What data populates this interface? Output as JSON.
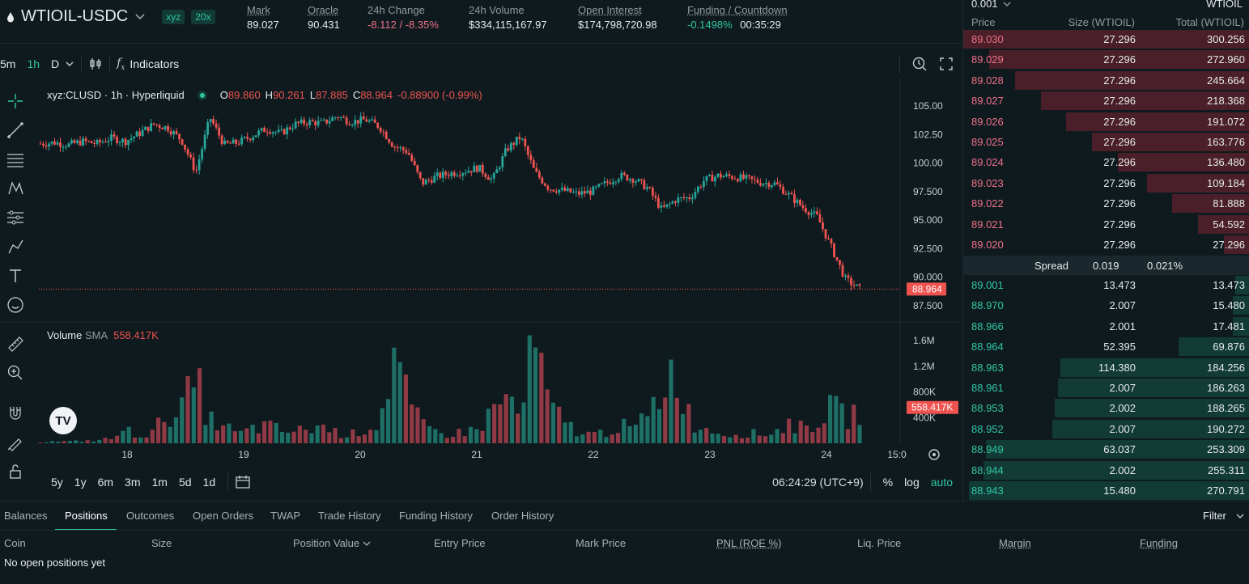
{
  "header": {
    "pair": "WTIOIL-USDC",
    "tag_dex": "xyz",
    "tag_leverage": "20x",
    "stats": [
      {
        "label": "Mark",
        "value": "89.027"
      },
      {
        "label": "Oracle",
        "value": "90.431"
      },
      {
        "label": "24h Change",
        "value": "-8.112 / -8.35%"
      },
      {
        "label": "24h Volume",
        "value": "$334,115,167.97"
      },
      {
        "label": "Open Interest",
        "value": "$174,798,720.98"
      },
      {
        "label": "Funding / Countdown",
        "value": "-0.1498%",
        "value2": "00:35:29"
      }
    ]
  },
  "toolbar": {
    "intervals": [
      "5m",
      "1h",
      "D"
    ],
    "active_interval": "1h",
    "indicators_label": "Indicators"
  },
  "legend": {
    "symbol": "xyz:CLUSD · 1h · Hyperliquid",
    "o_label": "O",
    "o": "89.860",
    "h_label": "H",
    "h": "90.261",
    "l_label": "L",
    "l": "87.885",
    "c_label": "C",
    "c": "88.964",
    "change": "-0.88900 (-0.99%)"
  },
  "volume_legend": {
    "label": "Volume",
    "sma": "SMA",
    "value": "558.417K"
  },
  "price_axis": [
    "105.00",
    "102.50",
    "100.00",
    "97.500",
    "95.000",
    "92.500",
    "90.000",
    "87.500"
  ],
  "last_price_tag": "88.964",
  "volume_axis": [
    "1.6M",
    "1.2M",
    "800K",
    "400K"
  ],
  "volume_tag": "558.417K",
  "time_axis": [
    "18",
    "19",
    "20",
    "21",
    "22",
    "23",
    "24",
    "15:0"
  ],
  "ranges": [
    "5y",
    "1y",
    "6m",
    "3m",
    "1m",
    "5d",
    "1d"
  ],
  "clock": "06:24:29 (UTC+9)",
  "scale_opts": [
    "%",
    "log",
    "auto"
  ],
  "orderbook": {
    "tick": "0.001",
    "unit": "WTIOIL",
    "col_price": "Price",
    "col_size": "Size (WTIOIL)",
    "col_total": "Total (WTIOIL)",
    "asks": [
      {
        "price": "89.030",
        "size": "27.296",
        "total": "300.256",
        "depth": 1.0
      },
      {
        "price": "89.029",
        "size": "27.296",
        "total": "272.960",
        "depth": 0.91
      },
      {
        "price": "89.028",
        "size": "27.296",
        "total": "245.664",
        "depth": 0.82
      },
      {
        "price": "89.027",
        "size": "27.296",
        "total": "218.368",
        "depth": 0.73
      },
      {
        "price": "89.026",
        "size": "27.296",
        "total": "191.072",
        "depth": 0.64
      },
      {
        "price": "89.025",
        "size": "27.296",
        "total": "163.776",
        "depth": 0.55
      },
      {
        "price": "89.024",
        "size": "27.296",
        "total": "136.480",
        "depth": 0.46
      },
      {
        "price": "89.023",
        "size": "27.296",
        "total": "109.184",
        "depth": 0.36
      },
      {
        "price": "89.022",
        "size": "27.296",
        "total": "81.888",
        "depth": 0.27
      },
      {
        "price": "89.021",
        "size": "27.296",
        "total": "54.592",
        "depth": 0.18
      },
      {
        "price": "89.020",
        "size": "27.296",
        "total": "27.296",
        "depth": 0.09
      }
    ],
    "spread_label": "Spread",
    "spread_value": "0.019",
    "spread_pct": "0.021%",
    "bids": [
      {
        "price": "89.001",
        "size": "13.473",
        "total": "13.473",
        "depth": 0.05
      },
      {
        "price": "88.970",
        "size": "2.007",
        "total": "15.480",
        "depth": 0.06
      },
      {
        "price": "88.966",
        "size": "2.001",
        "total": "17.481",
        "depth": 0.06
      },
      {
        "price": "88.964",
        "size": "52.395",
        "total": "69.876",
        "depth": 0.25
      },
      {
        "price": "88.963",
        "size": "114.380",
        "total": "184.256",
        "depth": 0.66
      },
      {
        "price": "88.961",
        "size": "2.007",
        "total": "186.263",
        "depth": 0.67
      },
      {
        "price": "88.953",
        "size": "2.002",
        "total": "188.265",
        "depth": 0.68
      },
      {
        "price": "88.952",
        "size": "2.007",
        "total": "190.272",
        "depth": 0.69
      },
      {
        "price": "88.949",
        "size": "63.037",
        "total": "253.309",
        "depth": 0.92
      },
      {
        "price": "88.944",
        "size": "2.002",
        "total": "255.311",
        "depth": 0.93
      },
      {
        "price": "88.943",
        "size": "15.480",
        "total": "270.791",
        "depth": 0.98
      }
    ]
  },
  "bottom": {
    "tabs": [
      "Balances",
      "Positions",
      "Outcomes",
      "Open Orders",
      "TWAP",
      "Trade History",
      "Funding History",
      "Order History"
    ],
    "active_tab": "Positions",
    "filter": "Filter",
    "columns": [
      "Coin",
      "Size",
      "Position Value",
      "Entry Price",
      "Mark Price",
      "PNL (ROE %)",
      "Liq. Price",
      "Margin",
      "Funding"
    ],
    "empty": "No open positions yet"
  },
  "colors": {
    "up": "#26a69a",
    "down": "#ef5350",
    "bg": "#0f1a1f",
    "accent": "#2fc7a1"
  },
  "chart_data": {
    "type": "candlestick",
    "x_ticks": [
      "18",
      "19",
      "20",
      "21",
      "22",
      "23",
      "24"
    ],
    "ylim": [
      87.5,
      105.5
    ],
    "close_path": [
      101.7,
      101.8,
      101.6,
      101.9,
      101.7,
      102.2,
      101.9,
      102.6,
      103.4,
      103.1,
      102.0,
      99.2,
      104.0,
      101.6,
      101.8,
      102.4,
      103.0,
      102.6,
      103.4,
      103.6,
      103.5,
      104.1,
      103.6,
      103.8,
      103.2,
      101.5,
      101.0,
      98.2,
      98.8,
      99.1,
      99.3,
      99.6,
      98.5,
      101.2,
      102.3,
      99.2,
      97.8,
      97.6,
      97.3,
      97.5,
      98.2,
      98.9,
      98.6,
      97.8,
      95.9,
      96.8,
      97.0,
      98.5,
      98.9,
      98.8,
      98.6,
      98.3,
      98.2,
      97.2,
      96.1,
      95.3,
      92.6,
      89.8,
      88.96
    ],
    "volume_path": [
      0.02,
      0.03,
      0.03,
      0.04,
      0.05,
      0.08,
      0.22,
      0.15,
      0.18,
      0.55,
      0.6,
      1.05,
      0.4,
      0.3,
      0.15,
      0.25,
      0.3,
      0.22,
      0.2,
      0.25,
      0.3,
      0.18,
      0.15,
      0.25,
      0.35,
      1.55,
      0.7,
      0.3,
      0.2,
      0.15,
      0.2,
      0.25,
      0.55,
      0.8,
      0.45,
      1.75,
      0.6,
      0.4,
      0.2,
      0.15,
      0.2,
      0.3,
      0.25,
      0.45,
      0.95,
      1.35,
      0.4,
      0.25,
      0.2,
      0.15,
      0.18,
      0.15,
      0.2,
      0.35,
      0.25,
      0.4,
      0.6,
      0.45,
      0.55
    ]
  }
}
